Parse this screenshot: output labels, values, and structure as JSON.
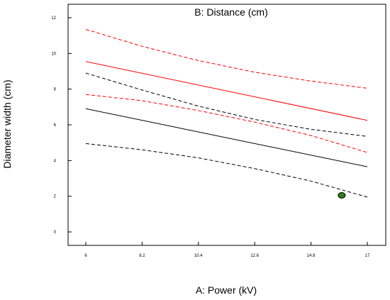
{
  "chart_data": {
    "type": "line",
    "title": "B: Distance (cm)",
    "xlabel": "A: Power (kV)",
    "ylabel": "Diameter width (cm)",
    "xlim": [
      6,
      17
    ],
    "ylim": [
      -1,
      12.8
    ],
    "x_tick_labels": [
      "6",
      "8.2",
      "10.4",
      "12.6",
      "14.8",
      "17"
    ],
    "x_tick_values": [
      6,
      8.2,
      10.4,
      12.6,
      14.8,
      17
    ],
    "y_ticks": [
      0,
      2,
      4,
      6,
      8,
      10,
      12
    ],
    "grid": false,
    "legend": "none",
    "colors": {
      "red": "#ff0000",
      "black": "#000000",
      "point": "#2e7d16"
    },
    "series": [
      {
        "color": "#ff0000",
        "style": "solid",
        "x": [
          6,
          17
        ],
        "y": [
          9.55,
          6.25
        ]
      },
      {
        "color": "#ff0000",
        "style": "dashed",
        "x": [
          6,
          8.2,
          10.4,
          12.6,
          14.8,
          17
        ],
        "y": [
          11.35,
          10.4,
          9.6,
          8.95,
          8.45,
          8.05
        ]
      },
      {
        "color": "#ff0000",
        "style": "dashed",
        "x": [
          6,
          8.2,
          10.4,
          12.6,
          14.8,
          17
        ],
        "y": [
          7.7,
          7.35,
          6.8,
          6.15,
          5.4,
          4.45
        ]
      },
      {
        "color": "#000000",
        "style": "solid",
        "x": [
          6,
          17
        ],
        "y": [
          6.9,
          3.65
        ]
      },
      {
        "color": "#000000",
        "style": "dashed",
        "x": [
          6,
          8.2,
          10.4,
          12.6,
          14.8,
          17
        ],
        "y": [
          8.9,
          7.95,
          7.05,
          6.3,
          5.75,
          5.35
        ]
      },
      {
        "color": "#000000",
        "style": "dashed",
        "x": [
          6,
          8.2,
          10.4,
          12.6,
          14.8,
          17
        ],
        "y": [
          4.95,
          4.6,
          4.15,
          3.55,
          2.85,
          1.95
        ]
      }
    ],
    "points": [
      {
        "x": 16.0,
        "y": 2.05,
        "color": "#2e7d16"
      }
    ]
  }
}
